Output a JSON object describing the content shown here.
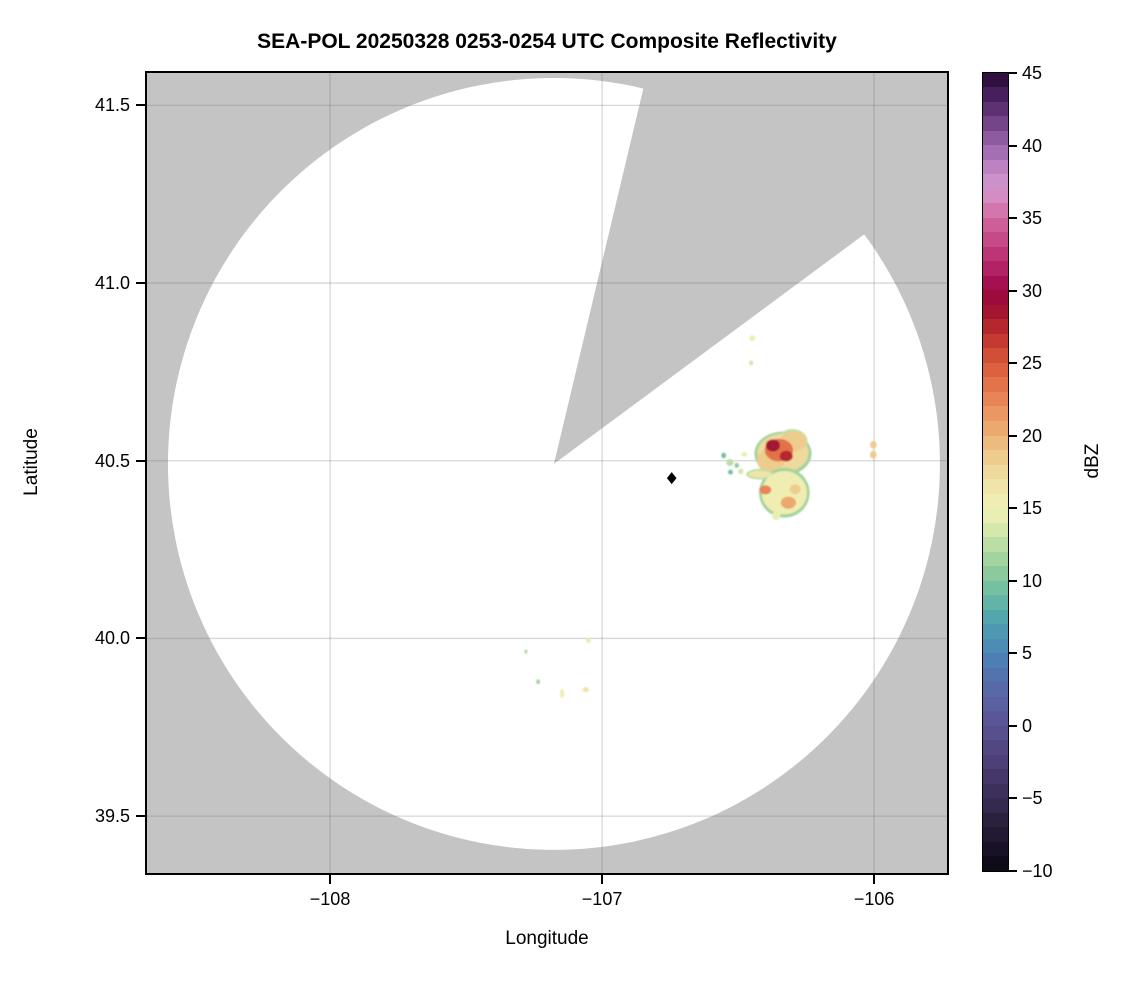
{
  "title": "SEA-POL 20250328 0253-0254 UTC Composite Reflectivity",
  "chart_data": {
    "type": "radar_composite_reflectivity_map",
    "title": "SEA-POL 20250328 0253-0254 UTC Composite Reflectivity",
    "xlabel": "Longitude",
    "ylabel": "Latitude",
    "xlim": [
      -108.673,
      -105.732
    ],
    "ylim": [
      39.34,
      41.591
    ],
    "grid": true,
    "x_ticks": [
      {
        "value": -108,
        "label": "−108"
      },
      {
        "value": -107,
        "label": "−107"
      },
      {
        "value": -106,
        "label": "−106"
      }
    ],
    "y_ticks": [
      {
        "value": 41.5,
        "label": "41.5"
      },
      {
        "value": 41.0,
        "label": "41.0"
      },
      {
        "value": 40.5,
        "label": "40.5"
      },
      {
        "value": 40.0,
        "label": "40.0"
      },
      {
        "value": 39.5,
        "label": "39.5"
      }
    ],
    "radar": {
      "name": "SEA-POL",
      "center_lon": -107.177,
      "center_lat": 40.491,
      "range_deg_lat": 1.086,
      "blocked_sector_azimuth_deg": [
        13.4,
        53.5
      ]
    },
    "site_marker": {
      "shape": "diamond",
      "color": "#000000",
      "lon": -106.744,
      "lat": 40.451
    },
    "colors": {
      "no_data": "#c4c4c4",
      "coverage": "#ffffff",
      "gridline": "rgba(110,110,110,0.28)",
      "frame": "#000000"
    },
    "colorbar": {
      "label": "dBZ",
      "min": -10,
      "max": 45,
      "step": 1,
      "ticks": [
        {
          "value": 45,
          "label": "45"
        },
        {
          "value": 40,
          "label": "40"
        },
        {
          "value": 35,
          "label": "35"
        },
        {
          "value": 30,
          "label": "30"
        },
        {
          "value": 25,
          "label": "25"
        },
        {
          "value": 20,
          "label": "20"
        },
        {
          "value": 15,
          "label": "15"
        },
        {
          "value": 10,
          "label": "10"
        },
        {
          "value": 5,
          "label": "5"
        },
        {
          "value": 0,
          "label": "0"
        },
        {
          "value": -5,
          "label": "−5"
        },
        {
          "value": -10,
          "label": "−10"
        }
      ],
      "anchors": [
        [
          -10,
          "#0b0713"
        ],
        [
          -7,
          "#261d38"
        ],
        [
          -4,
          "#413463"
        ],
        [
          -1,
          "#564b89"
        ],
        [
          0,
          "#5a5294"
        ],
        [
          2,
          "#5a64a4"
        ],
        [
          4,
          "#5178b1"
        ],
        [
          5,
          "#4b86b6"
        ],
        [
          7,
          "#4d9fb0"
        ],
        [
          9,
          "#6abba2"
        ],
        [
          11,
          "#97ce9b"
        ],
        [
          13,
          "#c6e3a7"
        ],
        [
          14,
          "#e2ecb0"
        ],
        [
          15,
          "#eff0b6"
        ],
        [
          16,
          "#f0e9ae"
        ],
        [
          18,
          "#efd496"
        ],
        [
          20,
          "#ecb274"
        ],
        [
          22,
          "#e98e5c"
        ],
        [
          24,
          "#e06a44"
        ],
        [
          26,
          "#cc4432"
        ],
        [
          28,
          "#ad1c2e"
        ],
        [
          29,
          "#9b0d33"
        ],
        [
          30,
          "#9c0845"
        ],
        [
          31,
          "#ad185c"
        ],
        [
          33,
          "#c23f80"
        ],
        [
          35,
          "#d0689f"
        ],
        [
          36,
          "#d384bb"
        ],
        [
          37,
          "#d295cb"
        ],
        [
          38,
          "#c88cc9"
        ],
        [
          40,
          "#9a64ab"
        ],
        [
          42,
          "#693a7e"
        ],
        [
          44,
          "#3c1650"
        ],
        [
          45,
          "#250b33"
        ]
      ]
    },
    "echoes": {
      "format": [
        "lon",
        "lat",
        "rx_deg",
        "ry_deg",
        "dbz"
      ],
      "items": [
        [
          -106.335,
          40.52,
          0.105,
          0.062,
          11
        ],
        [
          -106.3,
          40.555,
          0.055,
          0.034,
          12
        ],
        [
          -106.335,
          40.522,
          0.094,
          0.054,
          17
        ],
        [
          -106.295,
          40.555,
          0.048,
          0.028,
          18
        ],
        [
          -106.38,
          40.5,
          0.05,
          0.034,
          18
        ],
        [
          -106.35,
          40.53,
          0.052,
          0.032,
          23
        ],
        [
          -106.372,
          40.543,
          0.026,
          0.017,
          28
        ],
        [
          -106.323,
          40.513,
          0.024,
          0.015,
          27
        ],
        [
          -106.315,
          40.455,
          0.026,
          0.018,
          12
        ],
        [
          -106.315,
          40.455,
          0.019,
          0.013,
          16
        ],
        [
          -106.33,
          40.41,
          0.093,
          0.07,
          11
        ],
        [
          -106.42,
          40.462,
          0.05,
          0.015,
          12
        ],
        [
          -106.33,
          40.41,
          0.083,
          0.061,
          15
        ],
        [
          -106.42,
          40.462,
          0.042,
          0.01,
          16
        ],
        [
          -106.4,
          40.418,
          0.022,
          0.013,
          22
        ],
        [
          -106.315,
          40.382,
          0.028,
          0.017,
          20
        ],
        [
          -106.29,
          40.42,
          0.02,
          0.014,
          18
        ],
        [
          -106.36,
          40.345,
          0.016,
          0.012,
          14
        ],
        [
          -106.53,
          40.495,
          0.013,
          0.01,
          12
        ],
        [
          -106.505,
          40.487,
          0.008,
          0.007,
          10
        ],
        [
          -106.528,
          40.468,
          0.009,
          0.007,
          9
        ],
        [
          -106.49,
          40.47,
          0.01,
          0.008,
          13
        ],
        [
          -106.553,
          40.515,
          0.009,
          0.008,
          9
        ],
        [
          -106.477,
          40.518,
          0.011,
          0.006,
          14
        ],
        [
          -106.003,
          40.545,
          0.012,
          0.011,
          18
        ],
        [
          -106.003,
          40.517,
          0.012,
          0.011,
          18
        ],
        [
          -106.448,
          40.845,
          0.011,
          0.008,
          15
        ],
        [
          -106.452,
          40.775,
          0.008,
          0.007,
          13
        ],
        [
          -107.05,
          39.995,
          0.009,
          0.008,
          14
        ],
        [
          -107.28,
          39.963,
          0.006,
          0.006,
          12
        ],
        [
          -107.235,
          39.878,
          0.007,
          0.007,
          11
        ],
        [
          -107.147,
          39.845,
          0.008,
          0.013,
          15
        ],
        [
          -107.06,
          39.856,
          0.012,
          0.007,
          16
        ]
      ]
    }
  }
}
